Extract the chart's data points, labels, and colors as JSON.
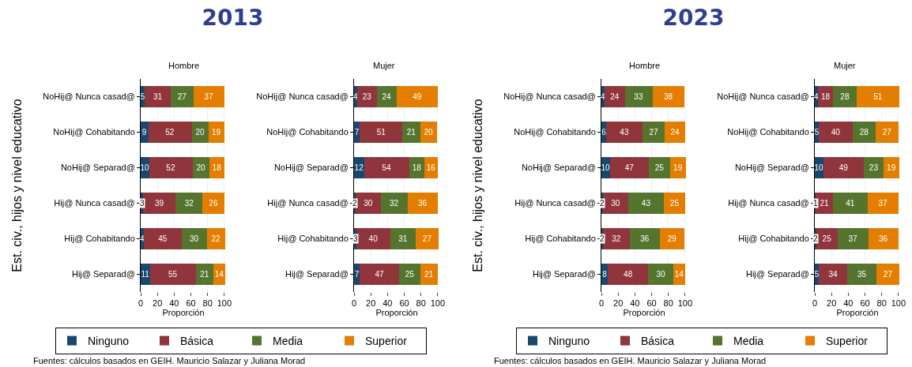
{
  "chart_data": [
    {
      "type": "bar",
      "title": "2013",
      "subtitle": "Hombre",
      "orientation": "horizontal",
      "stacked": true,
      "data_labels": true,
      "grid": "x",
      "legend": "bottom",
      "ylabel": "Est. civ., hijos y nivel educativo",
      "xlabel": "Proporción",
      "xlim": [
        0,
        102
      ],
      "xticks": [
        0,
        20,
        40,
        60,
        80,
        100
      ],
      "categories": [
        "NoHij@ Nunca casad@",
        "NoHij@ Cohabitando",
        "NoHij@ Separad@",
        "Hij@ Nunca casad@",
        "Hij@ Cohabitando",
        "Hij@ Separad@"
      ],
      "annotations": [
        "Fuentes: cálculos basados en GEIH. Mauricio Salazar y Juliana Morad"
      ],
      "series": [
        {
          "name": "Ninguno",
          "color": "#1a476f",
          "values": [
            5,
            9,
            10,
            3,
            4,
            11
          ]
        },
        {
          "name": "Básica",
          "color": "#90353b",
          "values": [
            31,
            52,
            52,
            39,
            45,
            55
          ]
        },
        {
          "name": "Media",
          "color": "#55752f",
          "values": [
            27,
            20,
            20,
            32,
            30,
            21
          ]
        },
        {
          "name": "Superior",
          "color": "#e37e00",
          "values": [
            37,
            19,
            18,
            26,
            22,
            14
          ]
        }
      ]
    },
    {
      "type": "bar",
      "subtitle": "Mujer",
      "orientation": "horizontal",
      "stacked": true,
      "data_labels": true,
      "grid": "x",
      "xlabel": "Proporción",
      "xlim": [
        0,
        102
      ],
      "xticks": [
        0,
        20,
        40,
        60,
        80,
        100
      ],
      "categories": [
        "NoHij@ Nunca casad@",
        "NoHij@ Cohabitando",
        "NoHij@ Separad@",
        "Hij@ Nunca casad@",
        "Hij@ Cohabitando",
        "Hij@ Separad@"
      ],
      "series": [
        {
          "color": "#1a476f",
          "values": [
            4,
            7,
            12,
            2,
            3,
            7
          ]
        },
        {
          "color": "#90353b",
          "values": [
            23,
            51,
            54,
            30,
            40,
            47
          ]
        },
        {
          "color": "#55752f",
          "values": [
            24,
            21,
            18,
            32,
            31,
            25
          ]
        },
        {
          "color": "#e37e00",
          "values": [
            49,
            20,
            16,
            36,
            27,
            21
          ]
        }
      ]
    },
    {
      "type": "bar",
      "title": "2023",
      "subtitle": "Hombre",
      "orientation": "horizontal",
      "stacked": true,
      "data_labels": true,
      "grid": "x",
      "legend": "bottom",
      "ylabel": "Est. civ., hijos y nivel educativo",
      "xlabel": "Proporción",
      "xlim": [
        0,
        102
      ],
      "xticks": [
        0,
        20,
        40,
        60,
        80,
        100
      ],
      "categories": [
        "NoHij@ Nunca casad@",
        "NoHij@ Cohabitando",
        "NoHij@ Separad@",
        "Hij@ Nunca casad@",
        "Hij@ Cohabitando",
        "Hij@ Separad@"
      ],
      "annotations": [
        "Fuentes: cálculos basados en GEIH. Mauricio Salazar y Juliana Morad"
      ],
      "series": [
        {
          "name": "Ninguno",
          "color": "#1a476f",
          "values": [
            4,
            6,
            10,
            2,
            2,
            8
          ]
        },
        {
          "name": "Básica",
          "color": "#90353b",
          "values": [
            24,
            43,
            47,
            30,
            32,
            48
          ]
        },
        {
          "name": "Media",
          "color": "#55752f",
          "values": [
            33,
            27,
            25,
            43,
            36,
            30
          ]
        },
        {
          "name": "Superior",
          "color": "#e37e00",
          "values": [
            38,
            24,
            19,
            25,
            29,
            14
          ]
        }
      ]
    },
    {
      "type": "bar",
      "subtitle": "Mujer",
      "orientation": "horizontal",
      "stacked": true,
      "data_labels": true,
      "grid": "x",
      "xlabel": "Proporción",
      "xlim": [
        0,
        102
      ],
      "xticks": [
        0,
        20,
        40,
        60,
        80,
        100
      ],
      "categories": [
        "NoHij@ Nunca casad@",
        "NoHij@ Cohabitando",
        "NoHij@ Separad@",
        "Hij@ Nunca casad@",
        "Hij@ Cohabitando",
        "Hij@ Separad@"
      ],
      "series": [
        {
          "color": "#1a476f",
          "values": [
            4,
            5,
            10,
            1,
            2,
            5
          ]
        },
        {
          "color": "#90353b",
          "values": [
            18,
            40,
            49,
            21,
            25,
            34
          ]
        },
        {
          "color": "#55752f",
          "values": [
            28,
            28,
            23,
            41,
            37,
            35
          ]
        },
        {
          "color": "#e37e00",
          "values": [
            51,
            27,
            19,
            37,
            36,
            27
          ]
        }
      ]
    }
  ]
}
